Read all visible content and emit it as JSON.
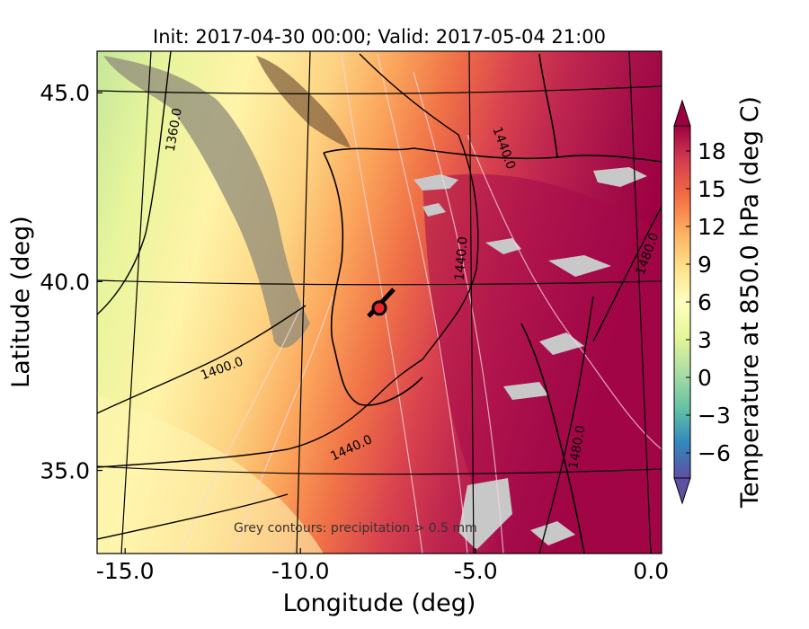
{
  "title": "Init: 2017-04-30 00:00; Valid: 2017-05-04 21:00",
  "x_axis": {
    "label": "Longitude (deg)",
    "ticks": [
      {
        "label": "-15.0",
        "value": -15.0
      },
      {
        "label": "-10.0",
        "value": -10.0
      },
      {
        "label": "-5.0",
        "value": -5.0
      },
      {
        "label": "0.0",
        "value": 0.0
      }
    ],
    "range": [
      -15.8,
      0.3
    ]
  },
  "y_axis": {
    "label": "Latitude (deg)",
    "ticks": [
      {
        "label": "35.0",
        "value": 35.0
      },
      {
        "label": "40.0",
        "value": 40.0
      },
      {
        "label": "45.0",
        "value": 45.0
      }
    ],
    "range": [
      32.8,
      46.1
    ]
  },
  "colorbar": {
    "label": "Temperature at 850.0 hPa (deg C)",
    "range": [
      -8,
      20
    ],
    "tick_labels": [
      "18",
      "15",
      "12",
      "9",
      "6",
      "3",
      "0",
      "−3",
      "−6"
    ],
    "tick_values": [
      18,
      15,
      12,
      9,
      6,
      3,
      0,
      -3,
      -6
    ],
    "colors": [
      "#5e4fa2",
      "#3288bd",
      "#66c2a5",
      "#abdda4",
      "#e6f598",
      "#ffffbf",
      "#fee08b",
      "#fdae61",
      "#f46d43",
      "#d53e4f",
      "#9e0142"
    ]
  },
  "contour_labels": [
    {
      "text": "1360.0",
      "lon": -13.5,
      "lat": 44.0
    },
    {
      "text": "1400.0",
      "lon": -12.2,
      "lat": 37.6
    },
    {
      "text": "1440.0",
      "lon": -8.5,
      "lat": 35.5
    },
    {
      "text": "1440.0",
      "lon": -4.3,
      "lat": 43.5
    },
    {
      "text": "1440.0",
      "lon": -5.3,
      "lat": 40.6
    },
    {
      "text": "1480.0",
      "lon": -2.0,
      "lat": 35.6
    },
    {
      "text": "1480.0",
      "lon": 0.0,
      "lat": 40.7
    }
  ],
  "marker": {
    "name": "site",
    "lon": -7.75,
    "lat": 39.3
  },
  "note": "Grey contours: precipitation > 0.5 mm"
}
